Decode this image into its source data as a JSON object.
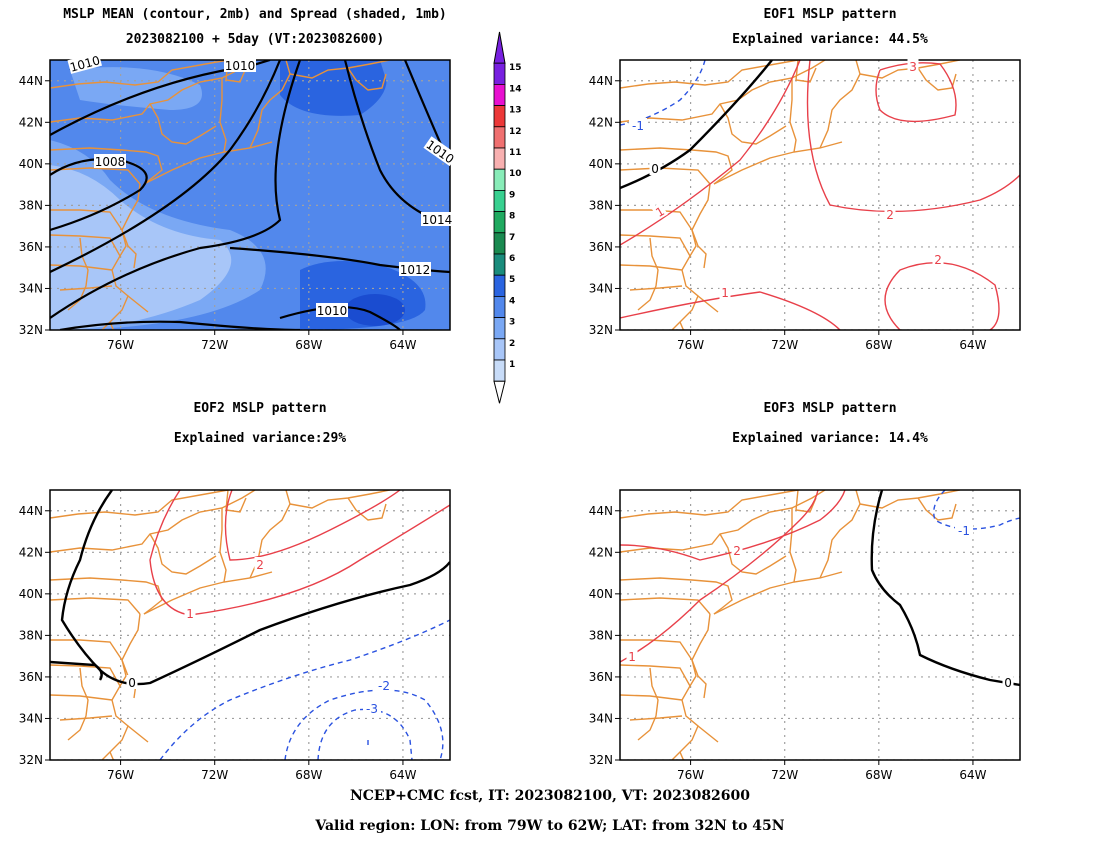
{
  "footer": {
    "line1": "NCEP+CMC fcst, IT: 2023082100, VT: 2023082600",
    "line2": "Valid region: LON: from 79W to 62W; LAT: from 32N to 45N"
  },
  "colors": {
    "border_orange": "#e8923a",
    "positive_contour": "#e8404a",
    "negative_contour": "#2a52e0",
    "zero_contour": "#000000",
    "mean_contour": "#000000",
    "grid": "#a0a0a0"
  },
  "colorbar": {
    "levels": [
      "1",
      "2",
      "3",
      "4",
      "5",
      "6",
      "7",
      "8",
      "9",
      "10",
      "11",
      "12",
      "13",
      "14",
      "15"
    ],
    "colors": [
      "#c8dcf8",
      "#a8c6f8",
      "#7aa8f4",
      "#5288ec",
      "#2a64e0",
      "#1a8c7c",
      "#1a8a50",
      "#20aa60",
      "#38d090",
      "#88ecb8",
      "#f8b0b0",
      "#f07070",
      "#ec3838",
      "#e810d0",
      "#7820e0"
    ]
  },
  "axes": {
    "y_ticks": [
      "44N",
      "42N",
      "40N",
      "38N",
      "36N",
      "34N",
      "32N"
    ],
    "x_ticks": [
      "76W",
      "72W",
      "68W",
      "64W"
    ]
  },
  "chart_data": [
    {
      "type": "contour",
      "title": "MSLP MEAN (contour, 2mb) and Spread (shaded, 1mb)",
      "subtitle": "2023082100 + 5day (VT:2023082600)",
      "xlim": [
        -79,
        -62
      ],
      "ylim": [
        32,
        45
      ],
      "contour_labels": [
        "1010",
        "1008",
        "1010",
        "1012",
        "1014",
        "1010",
        "1010"
      ],
      "spread_range": [
        1,
        15
      ]
    },
    {
      "type": "contour",
      "title": "EOF1 MSLP pattern",
      "subtitle": "Explained variance: 44.5%",
      "explained_variance": 44.5,
      "xlim": [
        -79,
        -62
      ],
      "ylim": [
        32,
        45
      ],
      "contour_labels": [
        "3",
        "0",
        "-1",
        "1",
        "2",
        "2",
        "1"
      ]
    },
    {
      "type": "contour",
      "title": "EOF2 MSLP pattern",
      "subtitle": "Explained variance:29%",
      "explained_variance": 29,
      "xlim": [
        -79,
        -62
      ],
      "ylim": [
        32,
        45
      ],
      "contour_labels": [
        "2",
        "1",
        "0",
        "-2",
        "-3"
      ]
    },
    {
      "type": "contour",
      "title": "EOF3 MSLP pattern",
      "subtitle": "Explained variance: 14.4%",
      "explained_variance": 14.4,
      "xlim": [
        -79,
        -62
      ],
      "ylim": [
        32,
        45
      ],
      "contour_labels": [
        "2",
        "1",
        "-1",
        "0"
      ]
    }
  ]
}
